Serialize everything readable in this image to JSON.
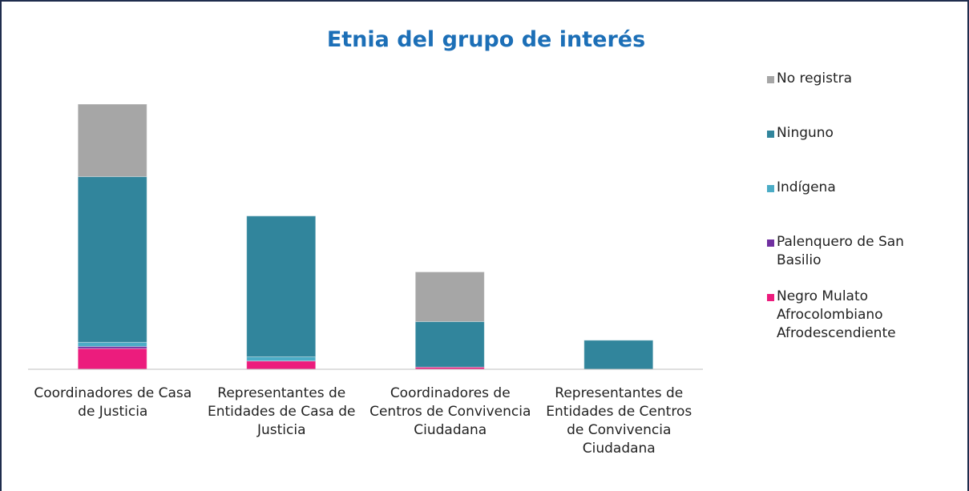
{
  "chart_data": {
    "type": "stacked_bar",
    "title": "Etnia del grupo de interés",
    "categories": [
      "Coordinadores de Casa de Justicia",
      "Representantes de Entidades de Casa de Justicia",
      "Coordinadores de Centros de Convivencia Ciudadana",
      "Representantes de Entidades de Centros de Convivencia Ciudadana"
    ],
    "series": [
      {
        "name": "Negro Mulato Afrocolombiano Afrodescendiente",
        "color": "#ec1c7d",
        "values": [
          5,
          2,
          0.5,
          0
        ]
      },
      {
        "name": "Palenquero de San Basilio",
        "color": "#7030a0",
        "values": [
          0.5,
          0,
          0,
          0
        ]
      },
      {
        "name": "Indígena",
        "color": "#4bacc6",
        "values": [
          1,
          1,
          0,
          0
        ]
      },
      {
        "name": "Ninguno",
        "color": "#31859c",
        "values": [
          40,
          34,
          11,
          7
        ]
      },
      {
        "name": "No registra",
        "color": "#a6a6a6",
        "values": [
          17.5,
          0,
          12,
          0
        ]
      }
    ],
    "ylim": [
      0,
      70
    ],
    "legend": "right"
  }
}
